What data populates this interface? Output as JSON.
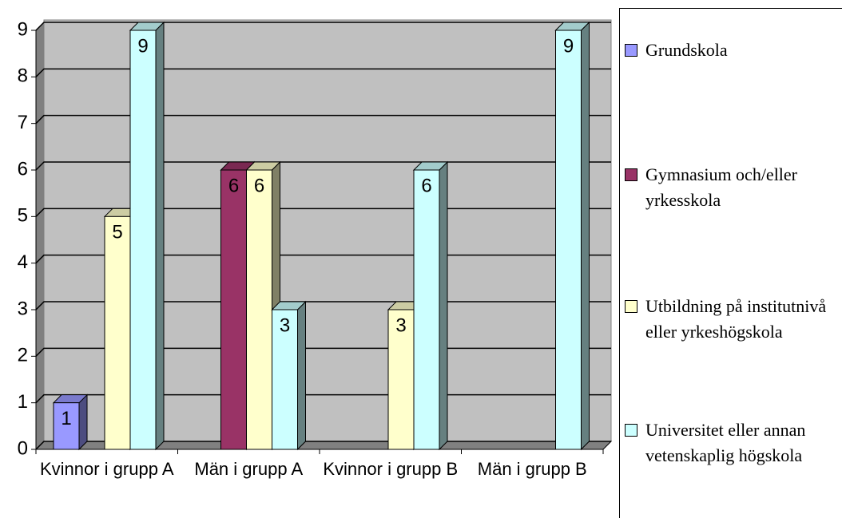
{
  "chart_data": {
    "type": "bar",
    "categories": [
      "Kvinnor i grupp A",
      "Män i grupp A",
      "Kvinnor i grupp B",
      "Män i grupp B"
    ],
    "series": [
      {
        "name": "Grundskola",
        "color": "#9999ff",
        "values": [
          1,
          null,
          null,
          null
        ]
      },
      {
        "name": "Gymnasium och/eller yrkesskola",
        "color": "#993366",
        "values": [
          null,
          6,
          null,
          null
        ]
      },
      {
        "name": "Utbildning på institutnivå eller yrkeshögskola",
        "color": "#ffffcc",
        "values": [
          5,
          6,
          3,
          null
        ]
      },
      {
        "name": "Universitet eller annan vetenskaplig högskola",
        "color": "#ccffff",
        "values": [
          9,
          3,
          6,
          9
        ]
      }
    ],
    "ylim": [
      0,
      9
    ],
    "yticks": [
      0,
      1,
      2,
      3,
      4,
      5,
      6,
      7,
      8,
      9
    ],
    "grid": true,
    "legend": "right"
  }
}
